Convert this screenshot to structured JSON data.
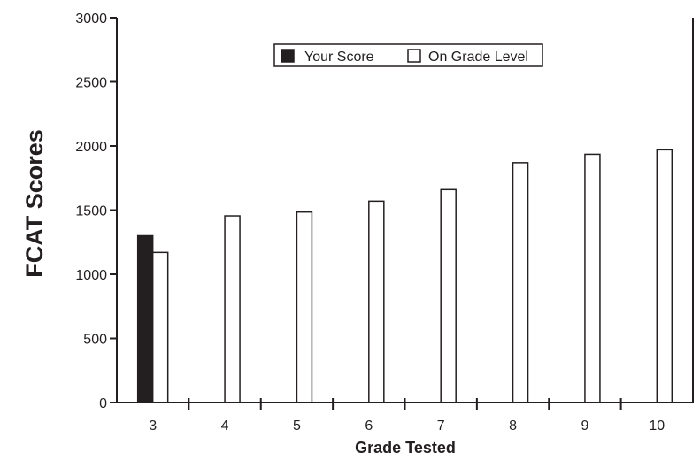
{
  "chart_data": {
    "type": "bar",
    "title": "",
    "xlabel": "Grade Tested",
    "ylabel": "FCAT Scores",
    "categories": [
      "3",
      "4",
      "5",
      "6",
      "7",
      "8",
      "9",
      "10"
    ],
    "series": [
      {
        "name": "Your Score",
        "color": "#231f20",
        "values": [
          1300,
          null,
          null,
          null,
          null,
          null,
          null,
          null
        ]
      },
      {
        "name": "On Grade Level",
        "color": "#ffffff",
        "values": [
          1170,
          1455,
          1485,
          1570,
          1660,
          1870,
          1935,
          1970
        ]
      }
    ],
    "ylim": [
      0,
      3000
    ],
    "yticks": [
      0,
      500,
      1000,
      1500,
      2000,
      2500,
      3000
    ],
    "grid": false,
    "legend_position": "top-center"
  }
}
